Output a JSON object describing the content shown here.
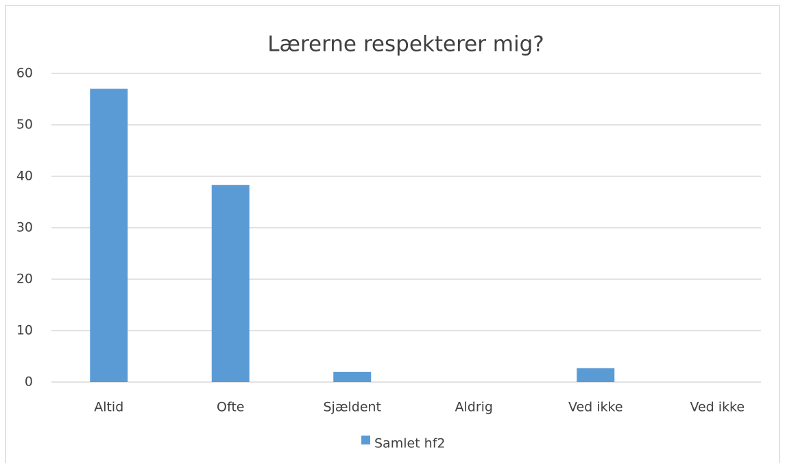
{
  "chart_data": {
    "type": "bar",
    "title": "Lærerne respekterer mig?",
    "categories": [
      "Altid",
      "Ofte",
      "Sjældent",
      "Aldrig",
      "Ved ikke",
      "Ved ikke"
    ],
    "series": [
      {
        "name": "Samlet hf2",
        "color": "#5b9bd5",
        "values": [
          57,
          38.3,
          2,
          0,
          2.7,
          0
        ]
      }
    ],
    "ylim": [
      0,
      60
    ],
    "yticks": [
      0,
      10,
      20,
      30,
      40,
      50,
      60
    ],
    "grid": true,
    "legend": "bottom"
  }
}
